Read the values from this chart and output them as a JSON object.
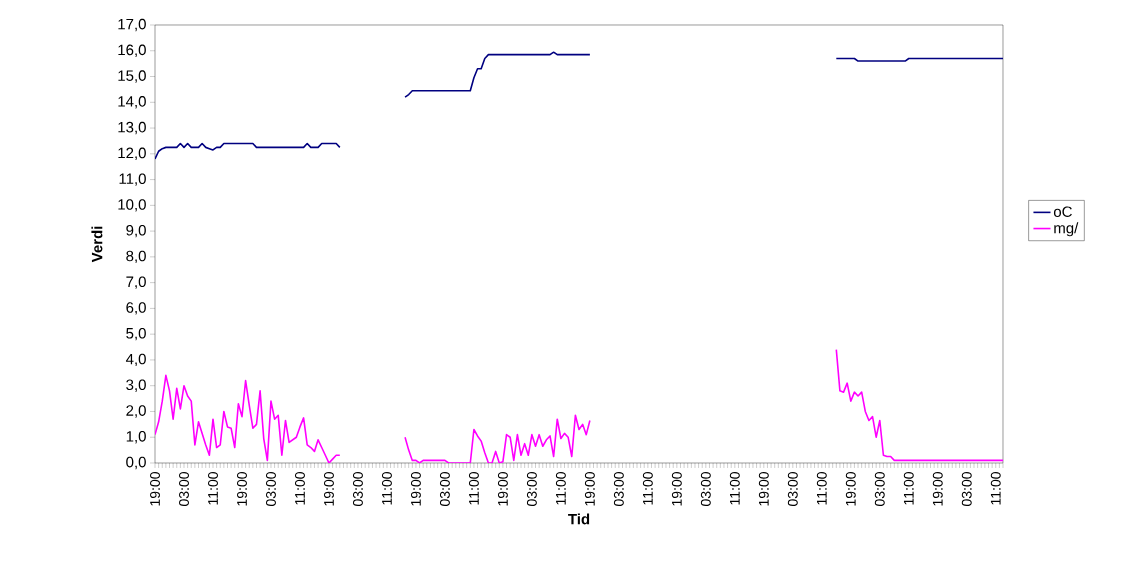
{
  "chart_data": {
    "type": "line",
    "xlabel": "Tid",
    "ylabel": "Verdi",
    "legend": "right",
    "marker": "none",
    "line_style": "solid",
    "ylim": [
      0,
      17
    ],
    "categories": [
      "19:00",
      null,
      null,
      null,
      null,
      null,
      null,
      null,
      "03:00",
      null,
      null,
      null,
      null,
      null,
      null,
      null,
      "11:00",
      null,
      null,
      null,
      null,
      null,
      null,
      null,
      "19:00",
      null,
      null,
      null,
      null,
      null,
      null,
      null,
      "03:00",
      null,
      null,
      null,
      null,
      null,
      null,
      null,
      "11:00",
      null,
      null,
      null,
      null,
      null,
      null,
      null,
      "19:00",
      null,
      null,
      null,
      null,
      null,
      null,
      null,
      "03:00",
      null,
      null,
      null,
      null,
      null,
      null,
      null,
      "11:00",
      null,
      null,
      null,
      null,
      null,
      null,
      null,
      "19:00",
      null,
      null,
      null,
      null,
      null,
      null,
      null,
      "03:00",
      null,
      null,
      null,
      null,
      null,
      null,
      null,
      "11:00",
      null,
      null,
      null,
      null,
      null,
      null,
      null,
      "19:00",
      null,
      null,
      null,
      null,
      null,
      null,
      null,
      "03:00",
      null,
      null,
      null,
      null,
      null,
      null,
      null,
      "11:00",
      null,
      null,
      null,
      null,
      null,
      null,
      null,
      "19:00",
      null,
      null,
      null,
      null,
      null,
      null,
      null,
      "03:00",
      null,
      null,
      null,
      null,
      null,
      null,
      null,
      "11:00",
      null,
      null,
      null,
      null,
      null,
      null,
      null,
      "19:00",
      null,
      null,
      null,
      null,
      null,
      null,
      null,
      "03:00",
      null,
      null,
      null,
      null,
      null,
      null,
      null,
      "11:00",
      null,
      null,
      null,
      null,
      null,
      null,
      null,
      "19:00",
      null,
      null,
      null,
      null,
      null,
      null,
      null,
      "03:00",
      null,
      null,
      null,
      null,
      null,
      null,
      null,
      "11:00",
      null,
      null,
      null,
      null,
      null,
      null,
      null,
      "19:00",
      null,
      null,
      null,
      null,
      null,
      null,
      null,
      "03:00",
      null,
      null,
      null,
      null,
      null,
      null,
      null,
      "11:00",
      null,
      null,
      null,
      null,
      null,
      null,
      null,
      "19:00",
      null,
      null,
      null,
      null,
      null,
      null,
      null,
      "03:00",
      null,
      null,
      null,
      null,
      null,
      null,
      null,
      "11:00",
      null,
      null
    ],
    "yticks": [
      {
        "value": 0,
        "label": "0,0"
      },
      {
        "value": 1,
        "label": "1,0"
      },
      {
        "value": 2,
        "label": "2,0"
      },
      {
        "value": 3,
        "label": "3,0"
      },
      {
        "value": 4,
        "label": "4,0"
      },
      {
        "value": 5,
        "label": "5,0"
      },
      {
        "value": 6,
        "label": "6,0"
      },
      {
        "value": 7,
        "label": "7,0"
      },
      {
        "value": 8,
        "label": "8,0"
      },
      {
        "value": 9,
        "label": "9,0"
      },
      {
        "value": 10,
        "label": "10,0"
      },
      {
        "value": 11,
        "label": "11,0"
      },
      {
        "value": 12,
        "label": "12,0"
      },
      {
        "value": 13,
        "label": "13,0"
      },
      {
        "value": 14,
        "label": "14,0"
      },
      {
        "value": 15,
        "label": "15,0"
      },
      {
        "value": 16,
        "label": "16,0"
      },
      {
        "value": 17,
        "label": "17,0"
      }
    ],
    "series": [
      {
        "name": "oC",
        "color": "#000080",
        "values": [
          11.8,
          12.1,
          12.2,
          12.25,
          12.25,
          12.25,
          12.25,
          12.4,
          12.25,
          12.4,
          12.25,
          12.25,
          12.25,
          12.4,
          12.25,
          12.2,
          12.15,
          12.25,
          12.25,
          12.4,
          12.4,
          12.4,
          12.4,
          12.4,
          12.4,
          12.4,
          12.4,
          12.4,
          12.25,
          12.25,
          12.25,
          12.25,
          12.25,
          12.25,
          12.25,
          12.25,
          12.25,
          12.25,
          12.25,
          12.25,
          12.25,
          12.25,
          12.4,
          12.25,
          12.25,
          12.25,
          12.4,
          12.4,
          12.4,
          12.4,
          12.4,
          12.25,
          null,
          null,
          null,
          null,
          null,
          null,
          null,
          null,
          null,
          null,
          null,
          null,
          null,
          null,
          null,
          null,
          null,
          14.2,
          14.3,
          14.45,
          14.45,
          14.45,
          14.45,
          14.45,
          14.45,
          14.45,
          14.45,
          14.45,
          14.45,
          14.45,
          14.45,
          14.45,
          14.45,
          14.45,
          14.45,
          14.45,
          14.95,
          15.3,
          15.3,
          15.7,
          15.85,
          15.85,
          15.85,
          15.85,
          15.85,
          15.85,
          15.85,
          15.85,
          15.85,
          15.85,
          15.85,
          15.85,
          15.85,
          15.85,
          15.85,
          15.85,
          15.85,
          15.85,
          15.95,
          15.85,
          15.85,
          15.85,
          15.85,
          15.85,
          15.85,
          15.85,
          15.85,
          15.85,
          15.85,
          null,
          null,
          null,
          null,
          null,
          null,
          null,
          null,
          null,
          null,
          null,
          null,
          null,
          null,
          null,
          null,
          null,
          null,
          null,
          null,
          null,
          null,
          null,
          null,
          null,
          null,
          null,
          null,
          null,
          null,
          null,
          null,
          null,
          null,
          null,
          null,
          null,
          null,
          null,
          null,
          null,
          null,
          null,
          null,
          null,
          null,
          null,
          null,
          null,
          null,
          null,
          null,
          null,
          null,
          null,
          null,
          null,
          null,
          null,
          null,
          null,
          null,
          null,
          null,
          null,
          null,
          null,
          15.7,
          15.7,
          15.7,
          15.7,
          15.7,
          15.7,
          15.6,
          15.6,
          15.6,
          15.6,
          15.6,
          15.6,
          15.6,
          15.6,
          15.6,
          15.6,
          15.6,
          15.6,
          15.6,
          15.6,
          15.7,
          15.7,
          15.7,
          15.7,
          15.7,
          15.7,
          15.7,
          15.7,
          15.7,
          15.7,
          15.7,
          15.7,
          15.7,
          15.7,
          15.7,
          15.7,
          15.7,
          15.7,
          15.7,
          15.7,
          15.7,
          15.7,
          15.7,
          15.7,
          15.7,
          15.7,
          15.7
        ]
      },
      {
        "name": "mg/",
        "color": "#ff00ff",
        "values": [
          1.1,
          1.6,
          2.4,
          3.4,
          2.8,
          1.7,
          2.9,
          2.1,
          3.0,
          2.6,
          2.4,
          0.7,
          1.6,
          1.15,
          0.7,
          0.3,
          1.7,
          0.6,
          0.7,
          2.0,
          1.4,
          1.35,
          0.6,
          2.3,
          1.8,
          3.2,
          2.25,
          1.35,
          1.5,
          2.8,
          0.95,
          0.1,
          2.4,
          1.7,
          1.85,
          0.3,
          1.65,
          0.8,
          0.9,
          1.0,
          1.4,
          1.75,
          0.7,
          0.6,
          0.45,
          0.9,
          0.6,
          0.3,
          0.0,
          0.15,
          0.3,
          0.3,
          null,
          null,
          null,
          null,
          null,
          null,
          null,
          null,
          null,
          null,
          null,
          null,
          null,
          null,
          null,
          null,
          null,
          1.0,
          0.5,
          0.1,
          0.1,
          0.0,
          0.1,
          0.1,
          0.1,
          0.1,
          0.1,
          0.1,
          0.1,
          0.0,
          0.0,
          0.0,
          0.0,
          0.0,
          0.0,
          0.0,
          1.3,
          1.05,
          0.85,
          0.4,
          0.0,
          0.0,
          0.45,
          0.0,
          0.05,
          1.1,
          1.0,
          0.1,
          1.1,
          0.3,
          0.75,
          0.3,
          1.1,
          0.65,
          1.1,
          0.65,
          0.9,
          1.05,
          0.25,
          1.7,
          0.95,
          1.15,
          1.0,
          0.25,
          1.85,
          1.3,
          1.5,
          1.1,
          1.65,
          null,
          null,
          null,
          null,
          null,
          null,
          null,
          null,
          null,
          null,
          null,
          null,
          null,
          null,
          null,
          null,
          null,
          null,
          null,
          null,
          null,
          null,
          null,
          null,
          null,
          null,
          null,
          null,
          null,
          null,
          null,
          null,
          null,
          null,
          null,
          null,
          null,
          null,
          null,
          null,
          null,
          null,
          null,
          null,
          null,
          null,
          null,
          null,
          null,
          null,
          null,
          null,
          null,
          null,
          null,
          null,
          null,
          null,
          null,
          null,
          null,
          null,
          null,
          null,
          null,
          null,
          null,
          4.4,
          2.8,
          2.75,
          3.1,
          2.4,
          2.75,
          2.6,
          2.75,
          2.0,
          1.65,
          1.8,
          1.0,
          1.65,
          0.3,
          0.25,
          0.25,
          0.1,
          0.1,
          0.1,
          0.1,
          0.1,
          0.1,
          0.1,
          0.1,
          0.1,
          0.1,
          0.1,
          0.1,
          0.1,
          0.1,
          0.1,
          0.1,
          0.1,
          0.1,
          0.1,
          0.1,
          0.1,
          0.1,
          0.1,
          0.1,
          0.1,
          0.1,
          0.1,
          0.1,
          0.1,
          0.1,
          0.1
        ]
      }
    ]
  }
}
